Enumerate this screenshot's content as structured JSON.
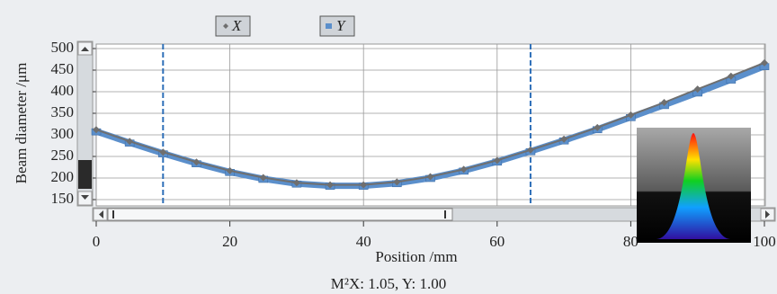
{
  "chart_data": {
    "type": "line",
    "legend": [
      "X",
      "Y"
    ],
    "x_label": "Position /mm",
    "y_label": "Beam diameter /μm",
    "annotation": "M²X: 1.05, Y: 1.00",
    "x": [
      0,
      5,
      10,
      15,
      20,
      25,
      30,
      35,
      40,
      45,
      50,
      55,
      60,
      65,
      70,
      75,
      80,
      85,
      90,
      95,
      100
    ],
    "series": [
      {
        "name": "X",
        "color": "#6f6f6f",
        "values": [
          312,
          285,
          260,
          237,
          217,
          201,
          189,
          184,
          184,
          191,
          203,
          220,
          241,
          265,
          290,
          317,
          346,
          375,
          406,
          436,
          467
        ]
      },
      {
        "name": "Y",
        "color": "#5b8fcb",
        "values": [
          308,
          282,
          257,
          234,
          214,
          198,
          187,
          182,
          182,
          188,
          200,
          217,
          238,
          262,
          287,
          313,
          341,
          369,
          398,
          428,
          459
        ]
      }
    ],
    "markers": [
      10,
      65
    ],
    "xlim": [
      0,
      100
    ],
    "xticks": [
      0,
      20,
      40,
      60,
      80,
      100
    ],
    "ylim": [
      150,
      500
    ],
    "yticks": [
      150,
      200,
      250,
      300,
      350,
      400,
      450,
      500
    ],
    "grid": true
  }
}
